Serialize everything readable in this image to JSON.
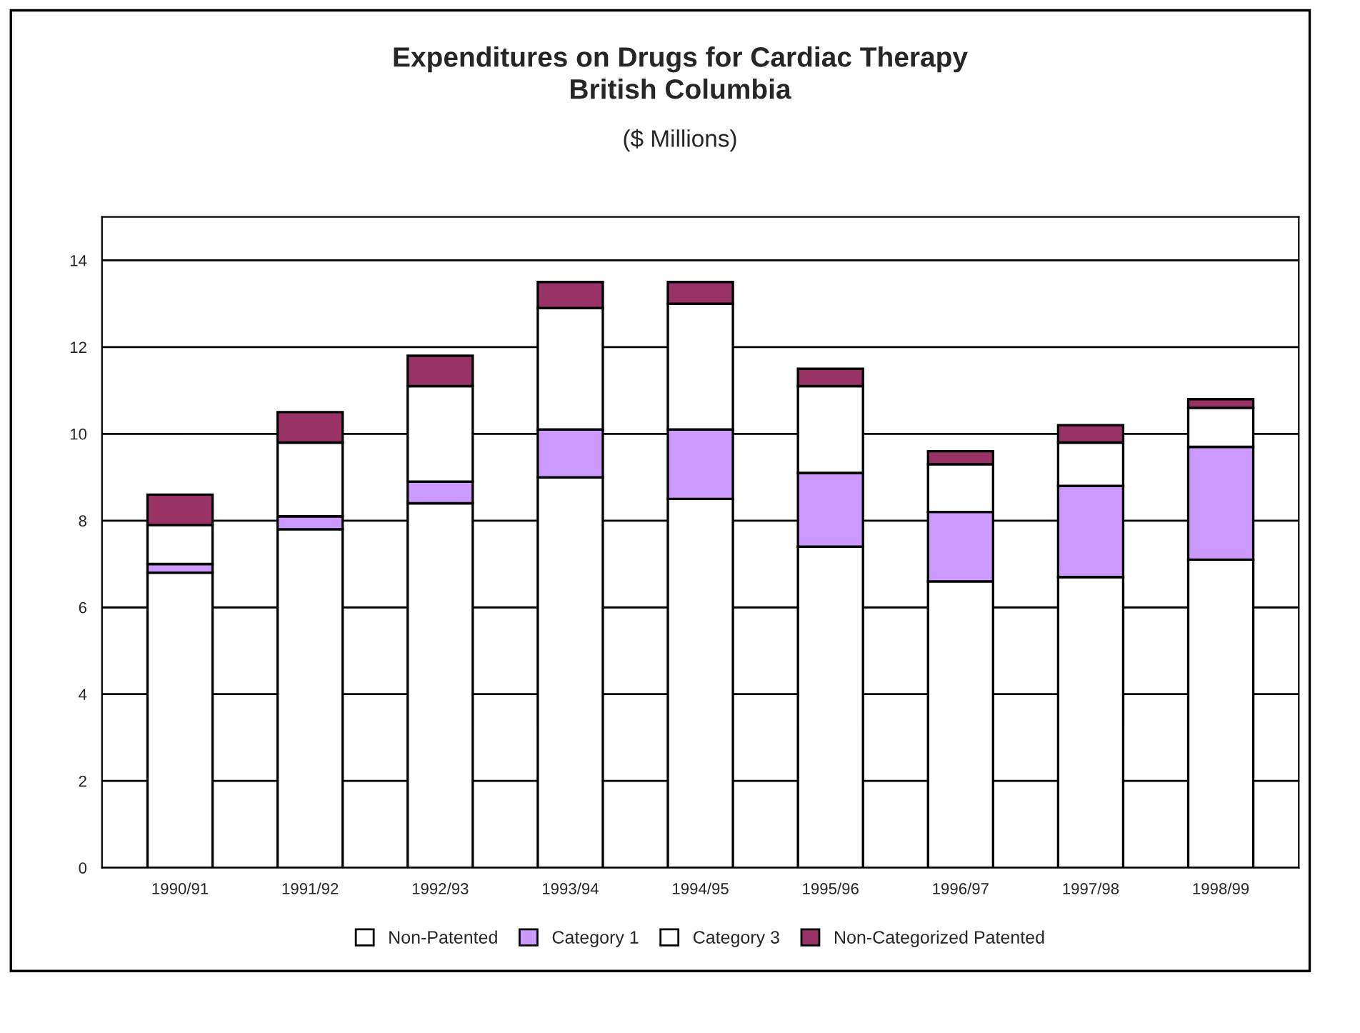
{
  "chart_data": {
    "type": "bar",
    "title": "Expenditures on Drugs for Cardiac Therapy\nBritish Columbia",
    "subtitle": "($ Millions)",
    "categories": [
      "1990/91",
      "1991/92",
      "1992/93",
      "1993/94",
      "1994/95",
      "1995/96",
      "1996/97",
      "1997/98",
      "1998/99"
    ],
    "stacked": true,
    "series": [
      {
        "name": "Non-Patented",
        "color": "#ffffff",
        "values": [
          6.8,
          7.8,
          8.4,
          9.0,
          8.5,
          7.4,
          6.6,
          6.7,
          7.1
        ]
      },
      {
        "name": "Category 1",
        "color": "#cc99ff",
        "values": [
          0.2,
          0.3,
          0.5,
          1.1,
          1.6,
          1.7,
          1.6,
          2.1,
          2.6
        ]
      },
      {
        "name": "Category 3",
        "color": "#ffffff",
        "values": [
          0.9,
          1.7,
          2.2,
          2.8,
          2.9,
          2.0,
          1.1,
          1.0,
          0.9
        ]
      },
      {
        "name": "Non-Categorized Patented",
        "color": "#993366",
        "values": [
          0.7,
          0.7,
          0.7,
          0.6,
          0.5,
          0.4,
          0.3,
          0.4,
          0.2
        ]
      }
    ],
    "ylim": [
      0,
      15
    ],
    "yticks": [
      0,
      2,
      4,
      6,
      8,
      10,
      12,
      14
    ],
    "grid": "y",
    "legend": "bottom"
  }
}
